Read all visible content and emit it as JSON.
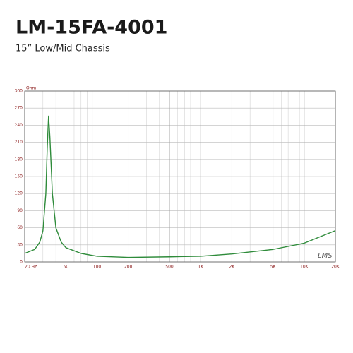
{
  "chart_data": {
    "type": "line",
    "title": "LM-15FA-4001",
    "subtitle": "15” Low/Mid Chassis",
    "y_unit": "Ohm",
    "watermark": "LMS",
    "xscale": "log",
    "grid": true,
    "color": "#2e8b3a",
    "x": [
      20,
      25,
      28,
      30,
      32,
      33,
      34,
      35,
      37,
      40,
      45,
      50,
      70,
      100,
      200,
      500,
      1000,
      2000,
      5000,
      10000,
      20000
    ],
    "values": [
      15,
      22,
      35,
      55,
      120,
      200,
      256,
      220,
      120,
      60,
      35,
      25,
      15,
      10,
      8,
      9,
      10,
      14,
      22,
      33,
      55
    ],
    "xlim": [
      20,
      20000
    ],
    "ylim": [
      0,
      300
    ],
    "xticks": [
      {
        "value": 20,
        "label": "20 Hz"
      },
      50,
      100,
      200,
      500,
      {
        "value": 1000,
        "label": "1K"
      },
      {
        "value": 2000,
        "label": "2K"
      },
      {
        "value": 5000,
        "label": "5K"
      },
      {
        "value": 10000,
        "label": "10K"
      },
      {
        "value": 20000,
        "label": "20K"
      }
    ],
    "yticks": [
      0,
      30,
      60,
      90,
      120,
      150,
      180,
      210,
      240,
      270,
      300
    ]
  }
}
